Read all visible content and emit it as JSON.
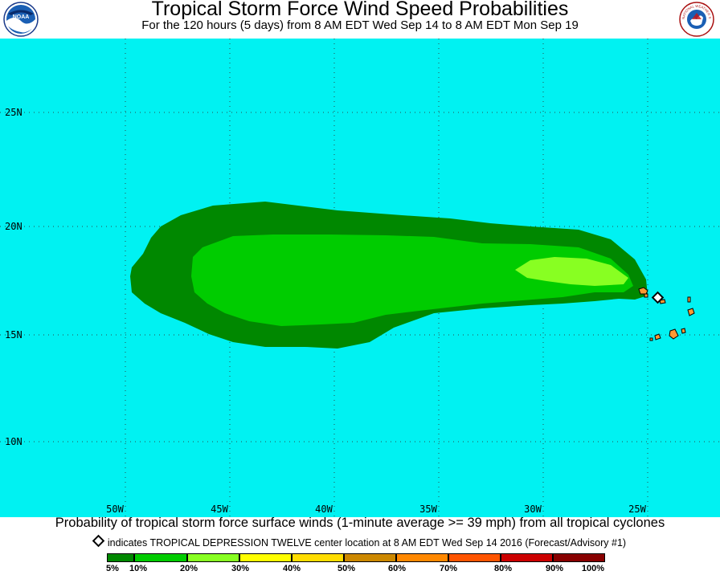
{
  "header": {
    "title": "Tropical Storm Force Wind Speed Probabilities",
    "subtitle": "For the 120 hours (5 days) from 8 AM EDT Wed Sep 14 to 8 AM EDT Mon Sep 19",
    "left_logo": "noaa-logo",
    "right_logo": "nws-logo",
    "left_logo_text": "NOAA",
    "right_logo_text": "NATIONAL WEATHER SERVICE"
  },
  "map": {
    "background_color": "#00f2f2",
    "land_color": "#ff9933",
    "lat_labels": [
      "25N",
      "20N",
      "15N",
      "10N"
    ],
    "lon_labels": [
      "50W",
      "45W",
      "40W",
      "35W",
      "30W",
      "25W"
    ],
    "grid": "dotted",
    "storm_center_marker": "diamond"
  },
  "footer": {
    "caption": "Probability of tropical storm force surface winds (1-minute average >= 39 mph) from all tropical cyclones",
    "indicator": "indicates TROPICAL DEPRESSION TWELVE center location at 8 AM EDT Wed Sep 14 2016 (Forecast/Advisory #1)"
  },
  "legend": {
    "labels": [
      "5%",
      "10%",
      "20%",
      "30%",
      "40%",
      "50%",
      "60%",
      "70%",
      "80%",
      "90%",
      "100%"
    ],
    "colors": [
      "#008800",
      "#00cc00",
      "#88ff22",
      "#ffff00",
      "#ffdd00",
      "#cc8800",
      "#ff8800",
      "#ff5500",
      "#cc0000",
      "#880000",
      "#880088"
    ]
  }
}
